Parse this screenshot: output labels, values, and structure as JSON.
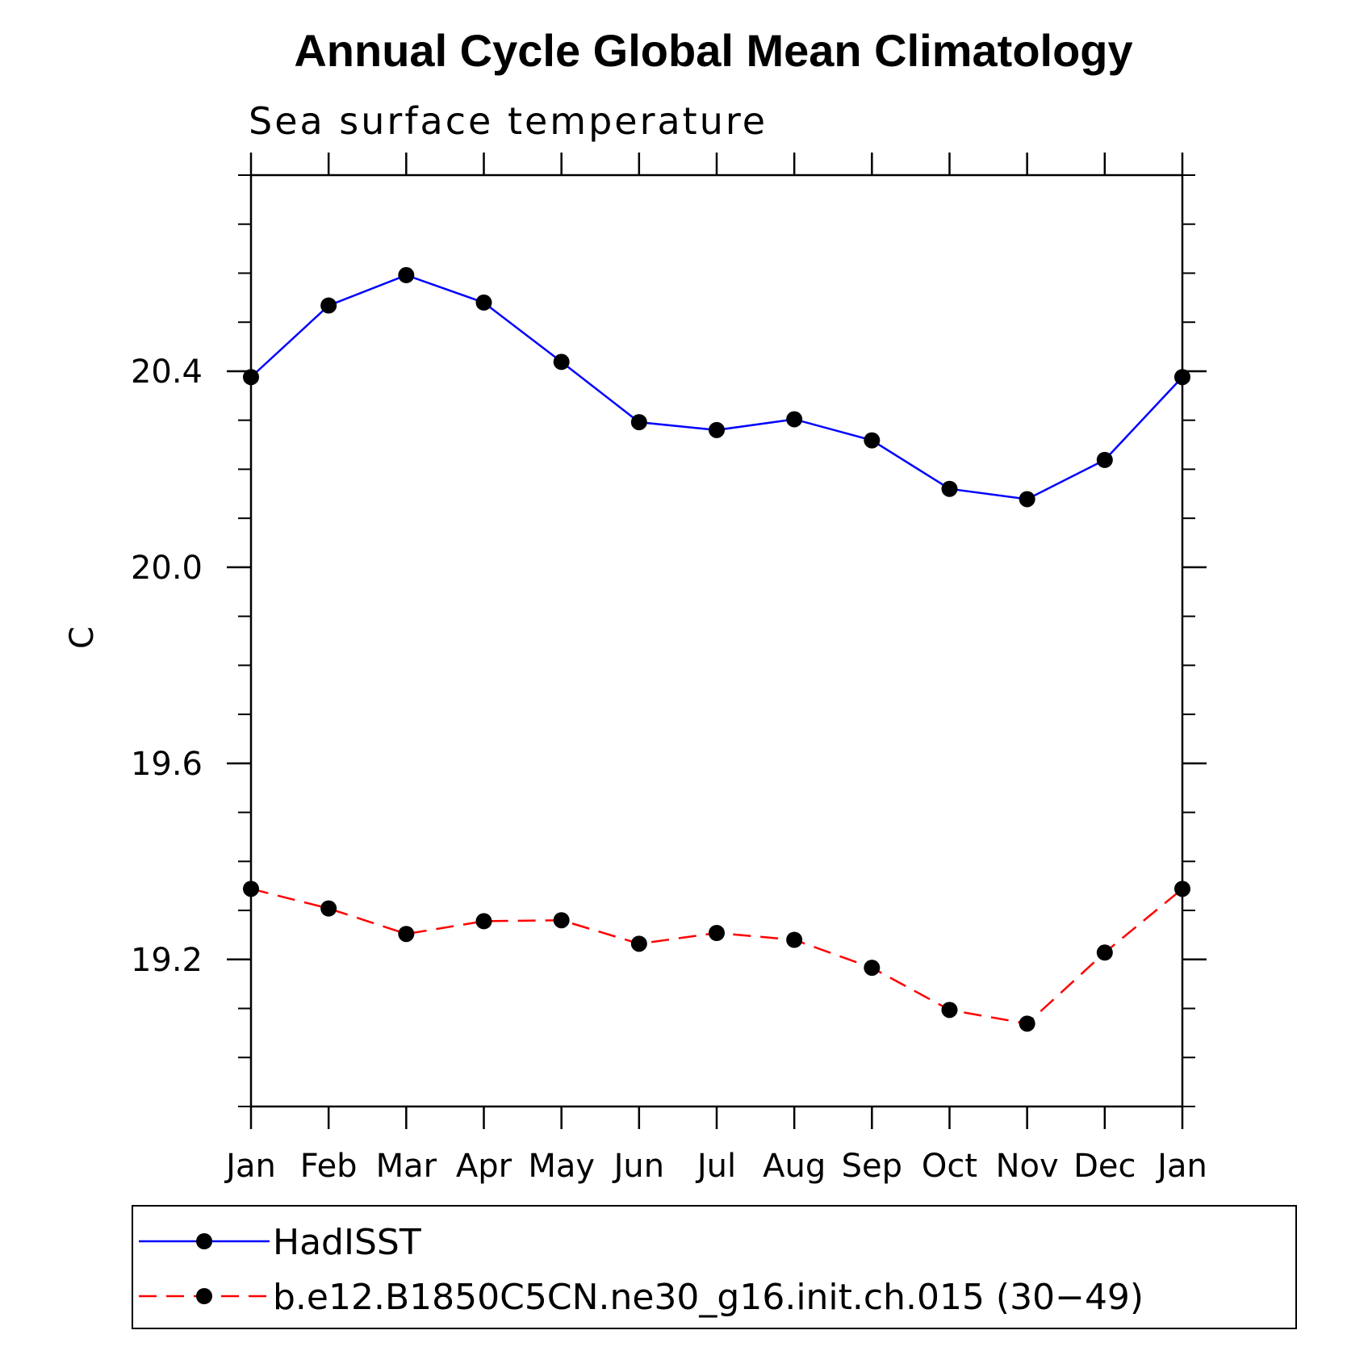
{
  "chart_data": {
    "type": "line",
    "title": "Annual Cycle Global Mean Climatology",
    "subtitle": "Sea surface temperature",
    "xlabel": "",
    "ylabel": "C",
    "categories": [
      "Jan",
      "Feb",
      "Mar",
      "Apr",
      "May",
      "Jun",
      "Jul",
      "Aug",
      "Sep",
      "Oct",
      "Nov",
      "Dec",
      "Jan"
    ],
    "ylim": [
      18.9,
      20.8
    ],
    "yticks": [
      {
        "value": 19.2,
        "label": "19.2"
      },
      {
        "value": 19.6,
        "label": "19.6"
      },
      {
        "value": 20.0,
        "label": "20.0"
      },
      {
        "value": 20.4,
        "label": "20.4"
      }
    ],
    "yminor_step": 0.1,
    "series": [
      {
        "name": "HadISST",
        "color": "#0000ff",
        "dash": "solid",
        "marker": "circle",
        "values": [
          20.388,
          20.534,
          20.596,
          20.54,
          20.419,
          20.296,
          20.28,
          20.302,
          20.259,
          20.16,
          20.139,
          20.219,
          20.388
        ]
      },
      {
        "name": "b.e12.B1850C5CN.ne30_g16.init.ch.015 (30−49)",
        "color": "#ff0000",
        "dash": "dashed",
        "marker": "circle",
        "values": [
          19.344,
          19.304,
          19.252,
          19.278,
          19.28,
          19.232,
          19.254,
          19.24,
          19.183,
          19.097,
          19.069,
          19.214,
          19.344
        ]
      }
    ],
    "legend_position": "bottom",
    "grid": false
  }
}
